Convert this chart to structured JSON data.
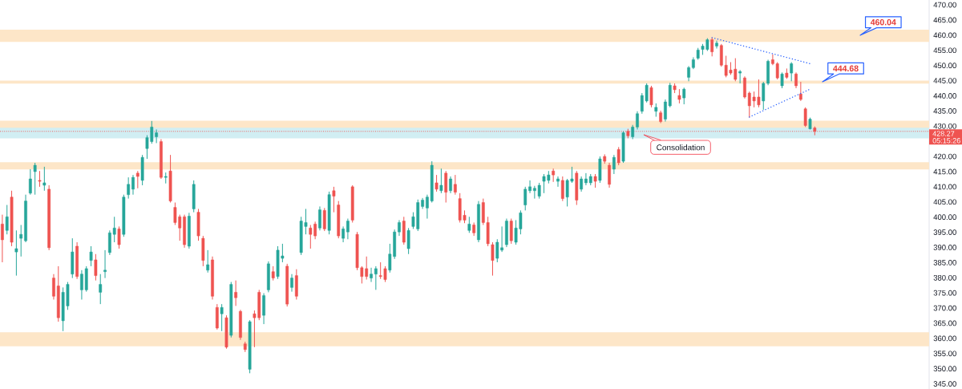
{
  "chart_data": {
    "type": "candlestick",
    "categories": [
      null,
      null,
      null,
      null,
      null,
      null,
      null,
      null,
      null,
      null,
      null,
      null,
      null,
      null,
      null,
      null,
      null,
      null,
      null,
      null,
      null,
      null,
      null,
      null,
      null,
      null,
      null,
      null,
      null,
      null,
      null,
      null,
      null,
      null,
      null,
      null,
      null,
      null,
      null,
      null,
      null,
      null,
      null,
      null,
      null,
      null,
      null,
      null,
      null,
      null,
      null,
      null,
      null,
      null,
      null,
      null,
      null,
      null,
      null,
      null,
      null,
      null,
      null,
      null,
      null,
      null,
      null,
      null,
      null,
      null,
      null,
      null,
      null,
      null,
      null,
      null,
      null,
      null,
      null,
      null,
      null,
      null,
      null,
      null,
      null,
      null,
      null,
      null,
      null,
      null,
      null,
      null,
      null,
      null,
      null,
      null,
      null,
      null,
      null,
      null,
      null,
      null,
      null,
      null,
      null,
      null,
      null,
      null,
      null,
      null,
      null,
      null,
      null,
      null,
      null,
      null,
      null,
      null,
      null,
      null,
      null,
      null,
      null,
      null,
      null,
      null,
      null,
      null,
      null,
      null,
      null,
      null,
      null,
      null,
      null,
      null,
      null,
      null,
      null,
      null,
      null,
      null,
      null,
      null,
      null,
      null,
      null,
      null,
      null,
      null,
      null,
      null,
      null,
      null,
      null,
      null,
      null,
      null,
      null,
      null,
      null,
      null,
      null,
      null,
      null,
      null,
      null,
      null,
      null,
      null,
      null,
      null,
      null,
      null,
      null,
      null,
      null,
      null,
      null,
      null,
      null,
      null,
      null,
      null,
      null,
      null,
      null,
      null,
      null,
      null,
      null,
      null,
      null,
      null,
      null,
      null,
      null,
      null,
      null
    ],
    "ohlc": [
      [
        397.7,
        400.8,
        385.1,
        392.5
      ],
      [
        395.6,
        404.0,
        394.3,
        400.1
      ],
      [
        406.6,
        408.7,
        390.4,
        391.7
      ],
      [
        388.5,
        395.6,
        380.7,
        389.6
      ],
      [
        393.0,
        397.4,
        387.0,
        394.3
      ],
      [
        392.2,
        407.4,
        391.7,
        405.3
      ],
      [
        407.9,
        415.8,
        407.4,
        412.6
      ],
      [
        415.0,
        417.9,
        407.4,
        417.1
      ],
      [
        412.1,
        415.2,
        410.0,
        411.8
      ],
      [
        410.5,
        416.6,
        408.7,
        411.3
      ],
      [
        409.2,
        410.5,
        389.1,
        389.9
      ],
      [
        379.9,
        381.2,
        372.8,
        373.9
      ],
      [
        377.3,
        383.8,
        365.5,
        366.8
      ],
      [
        365.8,
        376.8,
        362.4,
        375.2
      ],
      [
        370.7,
        378.6,
        369.4,
        377.8
      ],
      [
        381.2,
        393.0,
        379.9,
        388.5
      ],
      [
        390.4,
        391.7,
        379.6,
        380.4
      ],
      [
        376.0,
        382.5,
        372.8,
        381.2
      ],
      [
        376.0,
        383.8,
        375.4,
        383.0
      ],
      [
        385.7,
        390.4,
        383.8,
        388.5
      ],
      [
        385.9,
        387.8,
        379.1,
        380.7
      ],
      [
        375.2,
        381.2,
        371.3,
        377.8
      ],
      [
        382.0,
        389.1,
        379.9,
        382.5
      ],
      [
        388.3,
        395.6,
        387.5,
        394.8
      ],
      [
        394.3,
        400.1,
        391.7,
        396.4
      ],
      [
        396.1,
        396.9,
        389.6,
        390.9
      ],
      [
        394.3,
        407.4,
        393.5,
        406.6
      ],
      [
        407.4,
        413.1,
        406.1,
        410.8
      ],
      [
        409.2,
        413.9,
        407.4,
        413.1
      ],
      [
        414.5,
        415.2,
        409.5,
        413.4
      ],
      [
        412.1,
        420.5,
        410.5,
        419.7
      ],
      [
        422.6,
        427.0,
        419.2,
        426.2
      ],
      [
        424.9,
        431.7,
        424.2,
        429.7
      ],
      [
        426.5,
        428.9,
        424.4,
        427.8
      ],
      [
        424.9,
        425.7,
        412.6,
        413.1
      ],
      [
        413.1,
        414.7,
        411.1,
        413.4
      ],
      [
        415.2,
        420.5,
        404.8,
        405.3
      ],
      [
        403.2,
        404.8,
        397.4,
        398.2
      ],
      [
        400.1,
        400.8,
        392.2,
        396.4
      ],
      [
        400.1,
        400.8,
        389.9,
        390.9
      ],
      [
        390.4,
        401.4,
        389.6,
        400.3
      ],
      [
        402.7,
        412.1,
        401.6,
        410.8
      ],
      [
        401.6,
        402.7,
        392.2,
        393.8
      ],
      [
        393.0,
        393.8,
        383.8,
        385.7
      ],
      [
        382.5,
        389.1,
        381.7,
        384.3
      ],
      [
        385.9,
        387.0,
        372.8,
        373.9
      ],
      [
        370.2,
        371.3,
        362.9,
        363.4
      ],
      [
        368.1,
        371.3,
        362.4,
        370.2
      ],
      [
        366.8,
        367.6,
        356.6,
        357.1
      ],
      [
        361.0,
        378.6,
        360.3,
        377.8
      ],
      [
        375.2,
        379.1,
        370.7,
        373.4
      ],
      [
        368.9,
        369.4,
        359.5,
        360.3
      ],
      [
        358.2,
        358.9,
        355.5,
        356.3
      ],
      [
        349.8,
        366.0,
        348.5,
        365.5
      ],
      [
        368.1,
        369.2,
        357.1,
        366.8
      ],
      [
        375.2,
        376.0,
        366.0,
        366.8
      ],
      [
        367.6,
        374.9,
        364.7,
        374.1
      ],
      [
        376.0,
        385.4,
        375.2,
        384.6
      ],
      [
        382.0,
        383.8,
        379.1,
        379.9
      ],
      [
        380.4,
        390.4,
        379.6,
        389.1
      ],
      [
        386.4,
        391.2,
        385.1,
        387.2
      ],
      [
        383.8,
        384.6,
        370.5,
        371.3
      ],
      [
        376.8,
        381.2,
        375.4,
        379.9
      ],
      [
        380.7,
        382.8,
        372.8,
        373.9
      ],
      [
        388.3,
        400.1,
        387.5,
        398.7
      ],
      [
        396.9,
        402.7,
        394.3,
        398.2
      ],
      [
        396.4,
        397.4,
        389.6,
        394.3
      ],
      [
        397.7,
        398.5,
        392.7,
        393.8
      ],
      [
        396.4,
        403.5,
        395.6,
        402.4
      ],
      [
        402.2,
        403.0,
        395.4,
        396.1
      ],
      [
        395.6,
        408.4,
        394.3,
        407.4
      ],
      [
        408.7,
        410.0,
        401.6,
        406.9
      ],
      [
        404.0,
        405.3,
        393.0,
        393.8
      ],
      [
        393.0,
        396.9,
        391.7,
        396.1
      ],
      [
        395.1,
        399.5,
        392.7,
        398.7
      ],
      [
        410.0,
        410.5,
        398.2,
        399.0
      ],
      [
        394.3,
        395.1,
        382.5,
        383.3
      ],
      [
        383.3,
        383.8,
        378.1,
        380.4
      ],
      [
        383.0,
        387.0,
        379.4,
        380.4
      ],
      [
        379.9,
        383.3,
        378.6,
        381.2
      ],
      [
        381.2,
        383.8,
        376.0,
        383.0
      ],
      [
        380.7,
        385.1,
        379.6,
        380.4
      ],
      [
        383.0,
        383.8,
        378.6,
        379.4
      ],
      [
        382.5,
        391.2,
        381.7,
        387.8
      ],
      [
        387.0,
        395.9,
        386.2,
        395.1
      ],
      [
        395.1,
        399.0,
        393.8,
        398.2
      ],
      [
        398.7,
        400.1,
        390.9,
        391.7
      ],
      [
        389.6,
        396.4,
        387.8,
        395.6
      ],
      [
        396.9,
        401.6,
        396.1,
        400.1
      ],
      [
        396.1,
        405.8,
        395.4,
        404.8
      ],
      [
        403.5,
        406.3,
        402.7,
        405.6
      ],
      [
        403.0,
        407.4,
        399.5,
        406.6
      ],
      [
        405.3,
        418.4,
        404.8,
        417.1
      ],
      [
        411.3,
        413.9,
        408.4,
        409.2
      ],
      [
        408.7,
        416.0,
        407.9,
        410.5
      ],
      [
        414.5,
        415.2,
        404.8,
        408.2
      ],
      [
        408.7,
        413.4,
        407.9,
        412.6
      ],
      [
        410.8,
        413.9,
        407.4,
        408.2
      ],
      [
        406.1,
        407.9,
        398.2,
        399.0
      ],
      [
        400.6,
        402.2,
        398.0,
        399.0
      ],
      [
        395.6,
        400.1,
        394.8,
        397.7
      ],
      [
        397.4,
        398.2,
        393.8,
        394.8
      ],
      [
        392.5,
        405.3,
        391.7,
        404.2
      ],
      [
        404.8,
        406.1,
        397.4,
        398.2
      ],
      [
        398.2,
        400.1,
        390.4,
        391.2
      ],
      [
        390.9,
        391.7,
        380.7,
        385.7
      ],
      [
        386.4,
        392.7,
        385.1,
        391.7
      ],
      [
        389.1,
        396.9,
        388.5,
        389.9
      ],
      [
        390.9,
        399.5,
        390.1,
        398.7
      ],
      [
        398.7,
        399.5,
        391.2,
        392.2
      ],
      [
        391.7,
        399.0,
        390.9,
        396.4
      ],
      [
        396.1,
        402.2,
        394.3,
        401.4
      ],
      [
        404.0,
        410.0,
        402.2,
        409.2
      ],
      [
        408.7,
        412.1,
        407.9,
        410.0
      ],
      [
        408.7,
        410.3,
        406.1,
        409.5
      ],
      [
        406.9,
        411.3,
        406.1,
        410.5
      ],
      [
        411.8,
        414.2,
        407.9,
        413.4
      ],
      [
        412.1,
        415.2,
        411.1,
        413.9
      ],
      [
        415.2,
        416.0,
        411.6,
        413.9
      ],
      [
        411.8,
        413.4,
        410.0,
        412.6
      ],
      [
        412.1,
        413.4,
        405.3,
        406.1
      ],
      [
        406.6,
        412.6,
        403.5,
        412.1
      ],
      [
        411.8,
        416.6,
        411.3,
        412.6
      ],
      [
        414.5,
        415.2,
        404.0,
        405.6
      ],
      [
        409.2,
        413.4,
        408.4,
        412.6
      ],
      [
        411.3,
        414.5,
        410.5,
        412.6
      ],
      [
        411.3,
        414.2,
        410.5,
        413.4
      ],
      [
        413.4,
        414.2,
        409.7,
        411.8
      ],
      [
        412.1,
        420.0,
        411.3,
        419.2
      ],
      [
        420.0,
        420.7,
        417.6,
        418.4
      ],
      [
        417.1,
        417.9,
        409.7,
        410.8
      ],
      [
        415.8,
        420.5,
        414.2,
        419.7
      ],
      [
        422.3,
        423.1,
        417.1,
        417.9
      ],
      [
        418.4,
        428.3,
        417.9,
        427.8
      ],
      [
        428.3,
        429.1,
        426.0,
        426.8
      ],
      [
        426.5,
        430.4,
        425.7,
        429.7
      ],
      [
        429.7,
        434.9,
        428.9,
        434.1
      ],
      [
        434.9,
        440.9,
        434.1,
        440.1
      ],
      [
        438.3,
        444.1,
        437.8,
        443.5
      ],
      [
        442.7,
        443.3,
        436.2,
        437.0
      ],
      [
        434.9,
        437.5,
        433.1,
        436.2
      ],
      [
        434.4,
        435.1,
        431.0,
        431.5
      ],
      [
        432.3,
        438.8,
        431.5,
        438.0
      ],
      [
        436.7,
        444.3,
        436.2,
        443.5
      ],
      [
        443.3,
        444.1,
        440.9,
        442.0
      ],
      [
        440.1,
        442.2,
        437.5,
        438.8
      ],
      [
        439.3,
        442.7,
        437.2,
        442.2
      ],
      [
        446.1,
        449.8,
        444.8,
        449.3
      ],
      [
        449.3,
        452.7,
        448.8,
        451.9
      ],
      [
        452.4,
        455.8,
        451.9,
        455.1
      ],
      [
        455.3,
        457.1,
        453.5,
        456.4
      ],
      [
        455.3,
        459.0,
        454.8,
        458.5
      ],
      [
        458.5,
        459.2,
        453.0,
        454.5
      ],
      [
        456.4,
        458.2,
        455.6,
        457.4
      ],
      [
        456.6,
        457.1,
        449.6,
        450.1
      ],
      [
        450.1,
        453.2,
        446.1,
        446.7
      ],
      [
        448.5,
        451.1,
        446.9,
        447.5
      ],
      [
        448.8,
        452.4,
        444.8,
        445.4
      ],
      [
        447.5,
        448.5,
        444.1,
        448.0
      ],
      [
        445.9,
        446.4,
        439.1,
        439.6
      ],
      [
        440.9,
        441.4,
        432.8,
        436.7
      ],
      [
        439.6,
        441.4,
        436.2,
        438.3
      ],
      [
        439.6,
        445.4,
        436.2,
        437.0
      ],
      [
        438.3,
        444.6,
        435.4,
        444.1
      ],
      [
        444.1,
        451.9,
        443.5,
        451.4
      ],
      [
        451.9,
        453.7,
        450.1,
        450.6
      ],
      [
        450.6,
        451.1,
        445.4,
        445.9
      ],
      [
        443.3,
        447.7,
        442.5,
        447.2
      ],
      [
        447.5,
        449.0,
        445.6,
        446.1
      ],
      [
        447.5,
        451.1,
        444.8,
        450.6
      ],
      [
        447.2,
        447.7,
        442.5,
        443.3
      ],
      [
        440.6,
        444.6,
        438.3,
        438.8
      ],
      [
        435.7,
        436.2,
        429.7,
        430.2
      ],
      [
        429.1,
        432.8,
        428.9,
        432.3
      ],
      [
        429.4,
        429.9,
        427.0,
        428.27
      ],
      null,
      null,
      null,
      null,
      null,
      null,
      null,
      null,
      null,
      null,
      null,
      null,
      null,
      null,
      null,
      null,
      null,
      null,
      null,
      null,
      null,
      null,
      null,
      null
    ],
    "colors": [
      "#ef5350",
      "#26a69a",
      "#ef5350",
      "#26a69a",
      "#26a69a",
      "#26a69a",
      "#26a69a",
      "#26a69a",
      "#ef5350",
      "#26a69a",
      "#ef5350",
      "#ef5350",
      "#ef5350",
      "#26a69a",
      "#26a69a",
      "#26a69a",
      "#ef5350",
      "#26a69a",
      "#26a69a",
      "#26a69a",
      "#ef5350",
      "#26a69a",
      "#26a69a",
      "#26a69a",
      "#26a69a",
      "#ef5350",
      "#26a69a",
      "#26a69a",
      "#26a69a",
      "#ef5350",
      "#26a69a",
      "#26a69a",
      "#26a69a",
      "#26a69a",
      "#ef5350",
      "#26a69a",
      "#ef5350",
      "#ef5350",
      "#ef5350",
      "#ef5350",
      "#26a69a",
      "#26a69a",
      "#ef5350",
      "#ef5350",
      "#26a69a",
      "#ef5350",
      "#ef5350",
      "#26a69a",
      "#ef5350",
      "#26a69a",
      "#ef5350",
      "#ef5350",
      "#ef5350",
      "#26a69a",
      "#ef5350",
      "#ef5350",
      "#26a69a",
      "#26a69a",
      "#ef5350",
      "#26a69a",
      "#26a69a",
      "#ef5350",
      "#26a69a",
      "#ef5350",
      "#26a69a",
      "#26a69a",
      "#ef5350",
      "#ef5350",
      "#26a69a",
      "#ef5350",
      "#26a69a",
      "#ef5350",
      "#ef5350",
      "#26a69a",
      "#26a69a",
      "#ef5350",
      "#ef5350",
      "#ef5350",
      "#ef5350",
      "#26a69a",
      "#26a69a",
      "#ef5350",
      "#ef5350",
      "#26a69a",
      "#26a69a",
      "#26a69a",
      "#ef5350",
      "#26a69a",
      "#26a69a",
      "#26a69a",
      "#26a69a",
      "#26a69a",
      "#26a69a",
      "#ef5350",
      "#26a69a",
      "#ef5350",
      "#26a69a",
      "#ef5350",
      "#ef5350",
      "#ef5350",
      "#26a69a",
      "#ef5350",
      "#26a69a",
      "#ef5350",
      "#ef5350",
      "#ef5350",
      "#26a69a",
      "#26a69a",
      "#26a69a",
      "#ef5350",
      "#26a69a",
      "#26a69a",
      "#26a69a",
      "#26a69a",
      "#26a69a",
      "#26a69a",
      "#26a69a",
      "#26a69a",
      "#ef5350",
      "#26a69a",
      "#ef5350",
      "#26a69a",
      "#26a69a",
      "#ef5350",
      "#26a69a",
      "#26a69a",
      "#26a69a",
      "#ef5350",
      "#26a69a",
      "#ef5350",
      "#ef5350",
      "#26a69a",
      "#ef5350",
      "#26a69a",
      "#ef5350",
      "#26a69a",
      "#26a69a",
      "#26a69a",
      "#26a69a",
      "#ef5350",
      "#26a69a",
      "#ef5350",
      "#26a69a",
      "#26a69a",
      "#ef5350",
      "#ef5350",
      "#26a69a",
      "#26a69a",
      "#26a69a",
      "#26a69a",
      "#26a69a",
      "#26a69a",
      "#ef5350",
      "#26a69a",
      "#ef5350",
      "#ef5350",
      "#ef5350",
      "#ef5350",
      "#26a69a",
      "#ef5350",
      "#ef5350",
      "#ef5350",
      "#ef5350",
      "#26a69a",
      "#26a69a",
      "#ef5350",
      "#ef5350",
      "#26a69a",
      "#ef5350",
      "#26a69a",
      "#ef5350",
      "#ef5350",
      "#ef5350",
      "#26a69a",
      "#ef5350",
      null,
      null,
      null,
      null,
      null,
      null,
      null,
      null,
      null,
      null,
      null,
      null,
      null,
      null,
      null,
      null,
      null,
      null,
      null,
      null,
      null,
      null,
      null,
      null
    ],
    "series": [
      {
        "type": "line",
        "color": "#2962ff",
        "line_style": "dotted",
        "values": [
          null,
          null,
          null,
          null,
          null,
          null,
          null,
          null,
          null,
          null,
          null,
          null,
          null,
          null,
          null,
          null,
          null,
          null,
          null,
          null,
          null,
          null,
          null,
          null,
          null,
          null,
          null,
          null,
          null,
          null,
          null,
          null,
          null,
          null,
          null,
          null,
          null,
          null,
          null,
          null,
          null,
          null,
          null,
          null,
          null,
          null,
          null,
          null,
          null,
          null,
          null,
          null,
          null,
          null,
          null,
          null,
          null,
          null,
          null,
          null,
          null,
          null,
          null,
          null,
          null,
          null,
          null,
          null,
          null,
          null,
          null,
          null,
          null,
          null,
          null,
          null,
          null,
          null,
          null,
          null,
          null,
          null,
          null,
          null,
          null,
          null,
          null,
          null,
          null,
          null,
          null,
          null,
          null,
          null,
          null,
          null,
          null,
          null,
          null,
          null,
          null,
          null,
          null,
          null,
          null,
          null,
          null,
          null,
          null,
          null,
          null,
          null,
          null,
          null,
          null,
          null,
          null,
          null,
          null,
          null,
          null,
          null,
          null,
          null,
          null,
          null,
          null,
          null,
          null,
          null,
          null,
          null,
          null,
          null,
          null,
          null,
          null,
          null,
          null,
          null,
          null,
          null,
          null,
          null,
          null,
          null,
          null,
          null,
          null,
          null,
          null,
          null,
          459.2,
          null,
          null,
          null,
          null,
          null,
          null,
          null,
          null,
          null,
          null,
          null,
          null,
          null,
          null,
          null,
          null,
          null,
          null,
          null,
          null,
          450.6,
          null,
          null,
          null,
          null,
          null,
          null,
          null,
          null,
          null,
          null,
          null,
          null,
          null,
          null,
          null,
          null,
          null,
          null,
          null,
          null,
          null,
          null,
          null,
          null,
          null
        ]
      },
      {
        "type": "line",
        "color": "#2962ff",
        "line_style": "dotted",
        "values": [
          null,
          null,
          null,
          null,
          null,
          null,
          null,
          null,
          null,
          null,
          null,
          null,
          null,
          null,
          null,
          null,
          null,
          null,
          null,
          null,
          null,
          null,
          null,
          null,
          null,
          null,
          null,
          null,
          null,
          null,
          null,
          null,
          null,
          null,
          null,
          null,
          null,
          null,
          null,
          null,
          null,
          null,
          null,
          null,
          null,
          null,
          null,
          null,
          null,
          null,
          null,
          null,
          null,
          null,
          null,
          null,
          null,
          null,
          null,
          null,
          null,
          null,
          null,
          null,
          null,
          null,
          null,
          null,
          null,
          null,
          null,
          null,
          null,
          null,
          null,
          null,
          null,
          null,
          null,
          null,
          null,
          null,
          null,
          null,
          null,
          null,
          null,
          null,
          null,
          null,
          null,
          null,
          null,
          null,
          null,
          null,
          null,
          null,
          null,
          null,
          null,
          null,
          null,
          null,
          null,
          null,
          null,
          null,
          null,
          null,
          null,
          null,
          null,
          null,
          null,
          null,
          null,
          null,
          null,
          null,
          null,
          null,
          null,
          null,
          null,
          null,
          null,
          null,
          null,
          null,
          null,
          null,
          null,
          null,
          null,
          null,
          null,
          null,
          null,
          null,
          null,
          null,
          null,
          null,
          null,
          null,
          null,
          null,
          null,
          null,
          null,
          null,
          null,
          null,
          null,
          null,
          null,
          null,
          null,
          null,
          433.0,
          null,
          null,
          null,
          null,
          null,
          null,
          null,
          null,
          null,
          null,
          null,
          null,
          442.2,
          null,
          null,
          null,
          null,
          null,
          null,
          null,
          null,
          null,
          null,
          null,
          null,
          null,
          null,
          null,
          null,
          null,
          null,
          null,
          null,
          null,
          null,
          null,
          null,
          null
        ]
      }
    ],
    "ylim": [
      343.3,
      471.6
    ],
    "yticks": [
      {
        "value": 345,
        "label": "345.00"
      },
      {
        "value": 350,
        "label": "350.00"
      },
      {
        "value": 355,
        "label": "355.00"
      },
      {
        "value": 360,
        "label": "360.00"
      },
      {
        "value": 365,
        "label": "365.00"
      },
      {
        "value": 370,
        "label": "370.00"
      },
      {
        "value": 375,
        "label": "375.00"
      },
      {
        "value": 380,
        "label": "380.00"
      },
      {
        "value": 385,
        "label": "385.00"
      },
      {
        "value": 390,
        "label": "390.00"
      },
      {
        "value": 395,
        "label": "395.00"
      },
      {
        "value": 400,
        "label": "400.00"
      },
      {
        "value": 405,
        "label": "405.00"
      },
      {
        "value": 410,
        "label": "410.00"
      },
      {
        "value": 415,
        "label": "415.00"
      },
      {
        "value": 420,
        "label": "420.00"
      },
      {
        "value": 430,
        "label": "430.00"
      },
      {
        "value": 435,
        "label": "435.00"
      },
      {
        "value": 440,
        "label": "440.00"
      },
      {
        "value": 445,
        "label": "445.00"
      },
      {
        "value": 450,
        "label": "450.00"
      },
      {
        "value": 455,
        "label": "455.00"
      },
      {
        "value": 460,
        "label": "460.00"
      },
      {
        "value": 465,
        "label": "465.00"
      },
      {
        "value": 470,
        "label": "470.00"
      }
    ],
    "tick_labels": "y",
    "bands": [
      {
        "axis": "y",
        "from": 457.8,
        "to": 461.8,
        "color": "#fde6c8"
      },
      {
        "axis": "y",
        "from": 444.0,
        "to": 445.0,
        "color": "#fde6c8"
      },
      {
        "axis": "y",
        "from": 428.6,
        "to": 431.8,
        "color": "#fde6c8"
      },
      {
        "axis": "y",
        "from": 426.0,
        "to": 429.5,
        "color": "#d1eef3"
      },
      {
        "axis": "y",
        "from": 415.7,
        "to": 418.1,
        "color": "#fde6c8"
      },
      {
        "axis": "y",
        "from": 357.4,
        "to": 362.0,
        "color": "#fde6c8"
      }
    ],
    "ref_lines": [
      {
        "axis": "y",
        "value": 428.27,
        "label": "428.27",
        "color": "#ef5350",
        "line_style": "dotted"
      }
    ],
    "annotations": [
      "460.04",
      "444.68",
      "Consolidation",
      "05:15:26"
    ]
  }
}
